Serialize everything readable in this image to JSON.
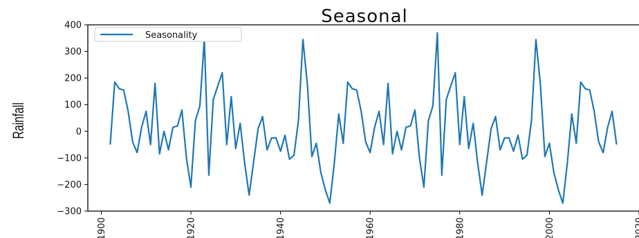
{
  "chart_data": {
    "type": "line",
    "title": "Seasonal",
    "xlabel": "",
    "ylabel": "Rainfall",
    "xlim": [
      1897,
      2020
    ],
    "ylim": [
      -300,
      400
    ],
    "xticks": [
      1900,
      1920,
      1940,
      1960,
      1980,
      2000,
      2020
    ],
    "yticks": [
      -300,
      -200,
      -100,
      0,
      100,
      200,
      300,
      400
    ],
    "ytick_labels": [
      "−300",
      "−200",
      "−100",
      "0",
      "100",
      "200",
      "300",
      "400"
    ],
    "grid": false,
    "legend_position": "top-left",
    "color": "#1f77b4",
    "series": [
      {
        "name": "Seasonality",
        "x": [
          1902,
          1903,
          1904,
          1905,
          1906,
          1907,
          1908,
          1909,
          1910,
          1911,
          1912,
          1913,
          1914,
          1915,
          1916,
          1917,
          1918,
          1919,
          1920,
          1921,
          1922,
          1923,
          1924,
          1925,
          1926,
          1927,
          1928,
          1929,
          1930,
          1931,
          1932,
          1933,
          1934,
          1935,
          1936,
          1937,
          1938,
          1939,
          1940,
          1941,
          1942,
          1943,
          1944,
          1945,
          1946,
          1947,
          1948,
          1949,
          1950,
          1951,
          1952,
          1953,
          1954,
          1955,
          1956,
          1957,
          1958,
          1959,
          1960,
          1961,
          1962,
          1963,
          1964,
          1965,
          1966,
          1967,
          1968,
          1969,
          1970,
          1971,
          1972,
          1973,
          1974,
          1975,
          1976,
          1977,
          1978,
          1979,
          1980,
          1981,
          1982,
          1983,
          1984,
          1985,
          1986,
          1987,
          1988,
          1989,
          1990,
          1991,
          1992,
          1993,
          1994,
          1995,
          1996,
          1997,
          1998,
          1999,
          2000,
          2001,
          2002,
          2003,
          2004,
          2005,
          2006,
          2007,
          2008,
          2009,
          2010,
          2011,
          2012,
          2013,
          2014,
          2015
        ],
        "values": [
          -50,
          185,
          160,
          155,
          75,
          -40,
          -80,
          15,
          75,
          -50,
          180,
          -85,
          0,
          -70,
          15,
          20,
          80,
          -100,
          -210,
          40,
          95,
          345,
          -165,
          120,
          170,
          220,
          -50,
          130,
          -65,
          30,
          -120,
          -240,
          -115,
          10,
          55,
          -70,
          -25,
          -25,
          -75,
          -15,
          -105,
          -90,
          40,
          345,
          175,
          -95,
          -45,
          -155,
          -220,
          -270,
          -120,
          65,
          -45,
          185,
          160,
          155,
          75,
          -40,
          -80,
          15,
          75,
          -50,
          180,
          -85,
          0,
          -70,
          15,
          20,
          80,
          -100,
          -210,
          40,
          95,
          370,
          -165,
          120,
          170,
          220,
          -50,
          130,
          -65,
          30,
          -120,
          -240,
          -115,
          10,
          55,
          -70,
          -25,
          -25,
          -75,
          -15,
          -105,
          -90,
          40,
          345,
          175,
          -95,
          -45,
          -155,
          -220,
          -270,
          -120,
          65,
          -45,
          185,
          160,
          155,
          75,
          -40,
          -80,
          15,
          75,
          -50
        ]
      }
    ]
  }
}
